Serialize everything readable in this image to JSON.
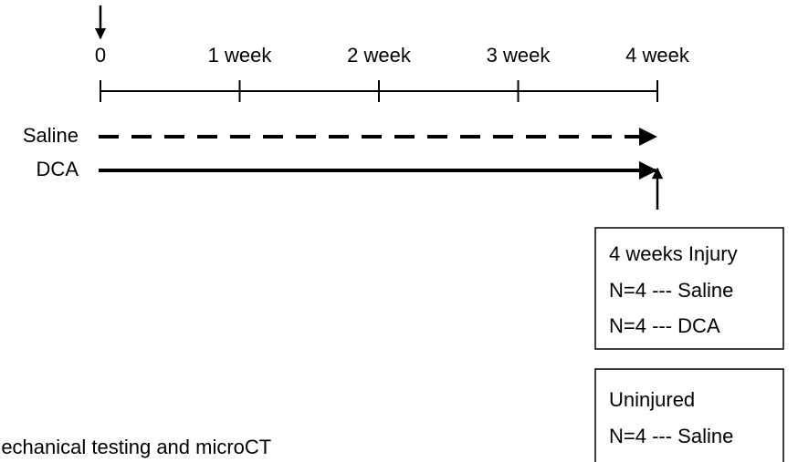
{
  "timeline": {
    "ticks": [
      "0",
      "1 week",
      "2 week",
      "3 week",
      "4 week"
    ]
  },
  "groups": [
    {
      "label": "Saline"
    },
    {
      "label": "DCA"
    }
  ],
  "boxes": [
    {
      "lines": [
        "4 weeks Injury",
        "N=4 --- Saline",
        "N=4 --- DCA"
      ]
    },
    {
      "lines": [
        "Uninjured",
        "N=4 --- Saline"
      ]
    }
  ],
  "footnote": "Mechanical testing and microCT"
}
